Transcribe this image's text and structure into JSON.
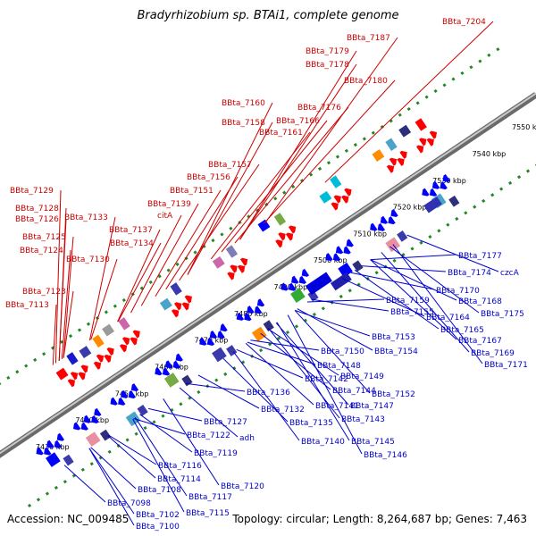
{
  "title": "Bradyrhizobium sp. BTAi1, complete genome",
  "footer": {
    "accession": "Accession: NC_009485",
    "topology": "Topology: circular; Length: 8,264,687 bp; Genes: 7,463"
  },
  "colors": {
    "upper_label": "#cc0000",
    "lower_label": "#0000cc",
    "backbone": "#888888",
    "forward_arrow": "#ff0000",
    "reverse_arrow": "#0000ff",
    "track_dots": "#228822"
  },
  "ticks": [
    "7430 kbp",
    "7440 kbp",
    "7450 kbp",
    "7460 kbp",
    "7470 kbp",
    "7480 kbp",
    "7490 kbp",
    "7500 kbp",
    "7510 kbp",
    "7520 kbp",
    "7530 kbp",
    "7540 kbp",
    "7550 kbp"
  ],
  "upper_labels": [
    "BBta_7204",
    "BBta_7187",
    "BBta_7179",
    "BBta_7178",
    "BBta_7180",
    "BBta_7176",
    "BBta_7160",
    "BBta_7158",
    "BBta_7166",
    "BBta_7161",
    "BBta_7157",
    "BBta_7156",
    "BBta_7151",
    "BBta_7139",
    "citA",
    "BBta_7137",
    "BBta_7134",
    "BBta_7133",
    "BBta_7130",
    "BBta_7129",
    "BBta_7128",
    "BBta_7126",
    "BBta_7125",
    "BBta_7124",
    "BBta_7123",
    "BBta_7113"
  ],
  "lower_labels": [
    "BBta_7177",
    "BBta_7174",
    "czcA",
    "BBta_7170",
    "BBta_7168",
    "BBta_7175",
    "BBta_7159",
    "BBta_7155",
    "BBta_7164",
    "BBta_7165",
    "BBta_7167",
    "BBta_7169",
    "BBta_7171",
    "BBta_7153",
    "BBta_7154",
    "BBta_7150",
    "BBta_7148",
    "BBta_7149",
    "BBta_7142",
    "BBta_7144",
    "BBta_7152",
    "BBta_7136",
    "BBta_7141",
    "BBta_7147",
    "BBta_7143",
    "BBta_7132",
    "BBta_7135",
    "BBta_7127",
    "adh",
    "BBta_7122",
    "BBta_7140",
    "BBta_7145",
    "BBta_7146",
    "BBta_7119",
    "BBta_7116",
    "BBta_7114",
    "BBta_7120",
    "BBta_7108",
    "BBta_7117",
    "BBta_7098",
    "BBta_7102",
    "BBta_7115",
    "BBta_7100"
  ]
}
